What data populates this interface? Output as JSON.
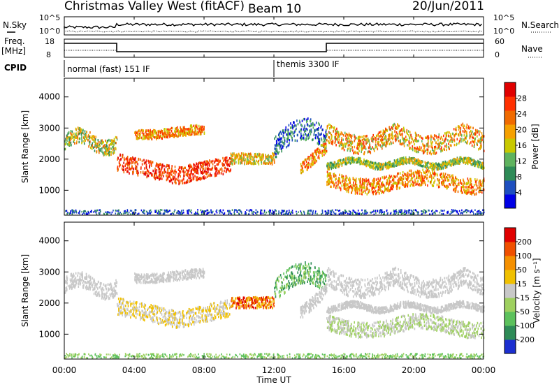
{
  "header": {
    "station": "Christmas Valley West (fitACF)",
    "beam": "Beam 10",
    "date": "20/Jun/2011"
  },
  "top_panels": {
    "nsky_label": "N.Sky",
    "nsky_ticks": [
      "10^5",
      "10^0"
    ],
    "nsearch_label": "N.Search",
    "nsearch_ticks": [
      "10^5",
      "10^0"
    ],
    "freq_label": "Freq.",
    "freq_unit": "[MHz]",
    "freq_ticks": [
      "18",
      "8"
    ],
    "nave_label": "Nave",
    "nave_ticks": [
      "60",
      "0"
    ],
    "cpid_label": "CPID",
    "cpid_modes": [
      {
        "name": "normal (fast) 151 IF",
        "start_hour": 0
      },
      {
        "name": "themis 3300 IF",
        "start_hour": 12
      }
    ]
  },
  "chart_data": [
    {
      "type": "heatmap",
      "title": "",
      "quantity": "Power",
      "xlabel": "Time UT",
      "ylabel": "Slant Range [km]",
      "xlim": [
        0,
        24
      ],
      "ylim": [
        200,
        4600
      ],
      "x_tick_labels": [
        "00:00",
        "04:00",
        "08:00",
        "12:00",
        "16:00",
        "20:00",
        "00:00"
      ],
      "y_ticks": [
        1000,
        2000,
        3000,
        4000
      ],
      "colorbar": {
        "label": "Power [dB]",
        "ticks": [
          "4",
          "8",
          "12",
          "16",
          "20",
          "24",
          "28"
        ],
        "colors": [
          "#0000e6",
          "#1e4fbf",
          "#2e8b57",
          "#5fb35f",
          "#c8c800",
          "#f5a000",
          "#f06a00",
          "#ff3000",
          "#e00000"
        ]
      }
    },
    {
      "type": "heatmap",
      "title": "",
      "quantity": "Velocity",
      "xlabel": "Time UT",
      "ylabel": "Slant Range [km]",
      "xlim": [
        0,
        24
      ],
      "ylim": [
        200,
        4600
      ],
      "x_tick_labels": [
        "00:00",
        "04:00",
        "08:00",
        "12:00",
        "16:00",
        "20:00",
        "00:00"
      ],
      "y_ticks": [
        1000,
        2000,
        3000,
        4000
      ],
      "colorbar": {
        "label": "Velocity [m s⁻¹]",
        "ticks": [
          "200",
          "100",
          "50",
          "15",
          "-15",
          "-50",
          "-100",
          "-200"
        ],
        "colors": [
          "#1c2fd0",
          "#2e8b57",
          "#5cc15c",
          "#9ed05f",
          "#c8c8c8",
          "#f0c000",
          "#f59000",
          "#f05000",
          "#e00000"
        ]
      }
    }
  ],
  "xaxis": {
    "title": "Time UT"
  }
}
